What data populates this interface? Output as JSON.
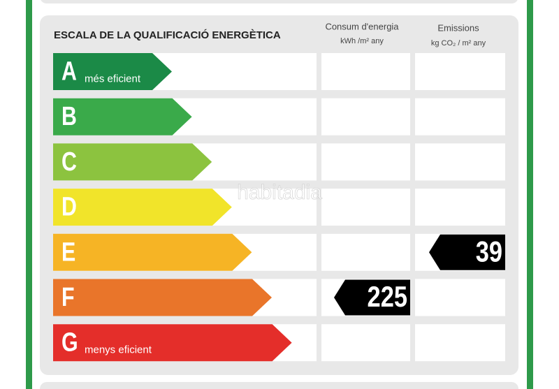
{
  "header": {
    "title": "ESCALA DE LA QUALIFICACIÓ ENERGÈTICA"
  },
  "columns": [
    {
      "title": "Consum d'energia",
      "unit": "kWh /m² any"
    },
    {
      "title": "Emissions",
      "unit": "kg CO₂ / m² any"
    }
  ],
  "classes": [
    {
      "letter": "A",
      "label": "més eficient",
      "color": "#1b8a47"
    },
    {
      "letter": "B",
      "color": "#3aaa4a"
    },
    {
      "letter": "C",
      "color": "#8cc33f"
    },
    {
      "letter": "D",
      "color": "#f1e42a"
    },
    {
      "letter": "E",
      "color": "#f6b425"
    },
    {
      "letter": "F",
      "color": "#e9752a"
    },
    {
      "letter": "G",
      "label": "menys eficient",
      "color": "#e42e2a"
    }
  ],
  "ratings": [
    {
      "column": 0,
      "class": "F",
      "value": 225
    },
    {
      "column": 1,
      "class": "E",
      "value": 39
    }
  ],
  "watermark": "habitadia"
}
